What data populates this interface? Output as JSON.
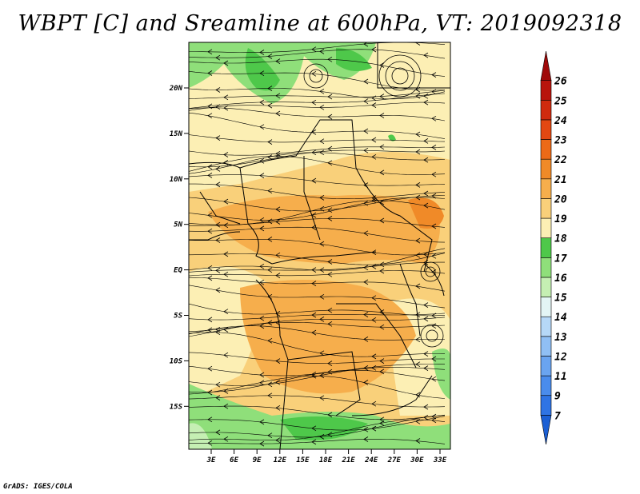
{
  "title": "WBPT [C] and Sreamline at 600hPa, VT: 2019092318",
  "credit": "GrADS: IGES/COLA",
  "map": {
    "lat_labels": [
      "20N",
      "15N",
      "10N",
      "5N",
      "EQ",
      "5S",
      "10S",
      "15S"
    ],
    "lon_labels": [
      "3E",
      "6E",
      "9E",
      "12E",
      "15E",
      "18E",
      "21E",
      "24E",
      "27E",
      "30E",
      "33E"
    ]
  },
  "colorbar": {
    "labels": [
      "7",
      "9",
      "11",
      "12",
      "13",
      "14",
      "15",
      "16",
      "17",
      "18",
      "19",
      "20",
      "21",
      "22",
      "23",
      "24",
      "25",
      "26"
    ],
    "colors": [
      "#1b5fd4",
      "#2f74e4",
      "#4a8cec",
      "#6aa4f0",
      "#90bff4",
      "#b6d8f7",
      "#e3f5f5",
      "#c5efb3",
      "#8fdf7a",
      "#4ec84a",
      "#fcefb4",
      "#f9d07a",
      "#f6ae4c",
      "#f08a28",
      "#ec6a18",
      "#e34812",
      "#cf2a0e",
      "#b8140c",
      "#a00a0a"
    ]
  }
}
